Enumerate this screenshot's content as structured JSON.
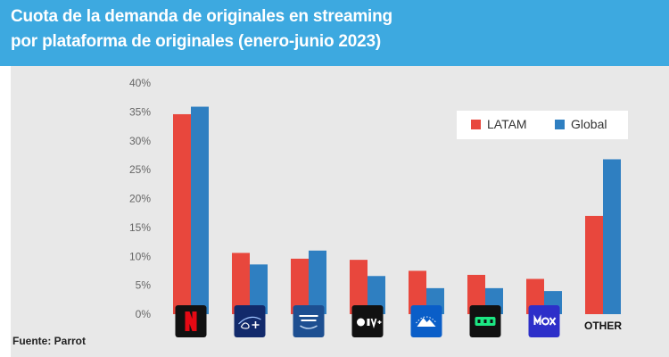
{
  "header": {
    "title_line1": "Cuota de la demanda de originales en streaming",
    "title_line2": "por plataforma de originales (enero-junio 2023)"
  },
  "source": "Fuente: Parrot",
  "colors": {
    "header_bg": "#3da9e0",
    "latam": "#e8473d",
    "global": "#2f7fc1",
    "panel_bg": "#e8e8e8"
  },
  "chart_data": {
    "type": "bar",
    "title": "Cuota de la demanda de originales en streaming por plataforma de originales (enero-junio 2023)",
    "categories": [
      "Netflix",
      "Disney+",
      "Prime Video",
      "Apple TV+",
      "Paramount+",
      "Hulu",
      "Max",
      "OTHER"
    ],
    "category_icons": [
      "netflix-logo",
      "disney-plus-logo",
      "prime-video-logo",
      "apple-tv-plus-logo",
      "paramount-plus-logo",
      "hulu-logo",
      "max-logo",
      "text"
    ],
    "category_text": [
      "",
      "",
      "",
      "",
      "",
      "",
      "",
      "OTHER"
    ],
    "series": [
      {
        "name": "LATAM",
        "color": "#e8473d",
        "values": [
          34.6,
          10.6,
          9.6,
          9.4,
          7.5,
          6.8,
          6.1,
          17.0
        ]
      },
      {
        "name": "Global",
        "color": "#2f7fc1",
        "values": [
          35.9,
          8.6,
          11.0,
          6.6,
          4.5,
          4.5,
          4.0,
          26.8
        ]
      }
    ],
    "y_ticks": [
      "0%",
      "5%",
      "10%",
      "15%",
      "20%",
      "25%",
      "30%",
      "35%",
      "40%"
    ],
    "ylim": [
      0,
      40
    ],
    "xlabel": "",
    "ylabel": "",
    "grid": false,
    "legend": "top-right"
  }
}
